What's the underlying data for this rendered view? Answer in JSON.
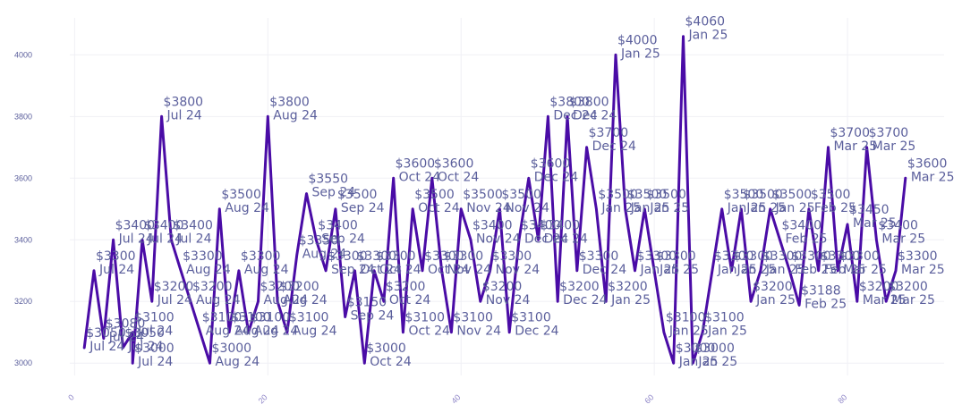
{
  "colors": {
    "line": "#4a0ca6",
    "label": "#5b5f9c",
    "grid": "#f0f0f5",
    "xtick": "#8f86c8",
    "ytick": "#5b5f9c"
  },
  "chart_data": {
    "type": "line",
    "title": "",
    "xlabel": "",
    "ylabel": "",
    "xlim": [
      -0.5,
      90
    ],
    "ylim": [
      2960,
      4120
    ],
    "x_ticks": [
      0,
      20,
      40,
      60,
      80
    ],
    "y_ticks": [
      3000,
      3200,
      3400,
      3600,
      3800,
      4000
    ],
    "grid": true,
    "legend": "none",
    "series": [
      {
        "points": [
          {
            "x": 1,
            "y": 3050,
            "price": "$3050",
            "month": "Jul 24"
          },
          {
            "x": 2,
            "y": 3300,
            "price": "$3300",
            "month": "Jul 24"
          },
          {
            "x": 3,
            "y": 3080,
            "price": "$3080",
            "month": "Jul 24"
          },
          {
            "x": 4,
            "y": 3400,
            "price": "$3400",
            "month": "Jul 24"
          },
          {
            "x": 5,
            "y": 3050,
            "price": "$3050",
            "month": "Jul 24"
          },
          {
            "x": 6,
            "y": 3100,
            "price": "$3100",
            "month": "Jul 24"
          },
          {
            "x": 6,
            "y": 3000,
            "price": "$3000",
            "month": "Jul 24"
          },
          {
            "x": 7,
            "y": 3400,
            "price": "$3400",
            "month": "Jul 24"
          },
          {
            "x": 8,
            "y": 3200,
            "price": "$3200",
            "month": "Jul 24"
          },
          {
            "x": 9,
            "y": 3800,
            "price": "$3800",
            "month": "Jul 24"
          },
          {
            "x": 10,
            "y": 3400,
            "price": "$3400",
            "month": "Jul 24"
          },
          {
            "x": 11,
            "y": 3300,
            "price": "$3300",
            "month": "Aug 24"
          },
          {
            "x": 12,
            "y": 3200,
            "price": "$3200",
            "month": "Aug 24"
          },
          {
            "x": 13,
            "y": 3100,
            "price": "$3100",
            "month": "Aug 24"
          },
          {
            "x": 14,
            "y": 3000,
            "price": "$3000",
            "month": "Aug 24"
          },
          {
            "x": 15,
            "y": 3500,
            "price": "$3500",
            "month": "Aug 24"
          },
          {
            "x": 16,
            "y": 3100,
            "price": "$3100",
            "month": "Aug 24"
          },
          {
            "x": 17,
            "y": 3300,
            "price": "$3300",
            "month": "Aug 24"
          },
          {
            "x": 18,
            "y": 3100,
            "price": "$3100",
            "month": "Aug 24"
          },
          {
            "x": 19,
            "y": 3200,
            "price": "$3200",
            "month": "Aug 24"
          },
          {
            "x": 20,
            "y": 3800,
            "price": "$3800",
            "month": "Aug 24"
          },
          {
            "x": 21,
            "y": 3200,
            "price": "$3200",
            "month": "Aug 24"
          },
          {
            "x": 22,
            "y": 3100,
            "price": "$3100",
            "month": "Aug 24"
          },
          {
            "x": 23,
            "y": 3350,
            "price": "$3350",
            "month": "Aug 24"
          },
          {
            "x": 24,
            "y": 3550,
            "price": "$3550",
            "month": "Sep 24"
          },
          {
            "x": 25,
            "y": 3400,
            "price": "$3400",
            "month": "Sep 24"
          },
          {
            "x": 26,
            "y": 3300,
            "price": "$3300",
            "month": "Sep 24"
          },
          {
            "x": 27,
            "y": 3500,
            "price": "$3500",
            "month": "Sep 24"
          },
          {
            "x": 28,
            "y": 3150,
            "price": "$3150",
            "month": "Sep 24"
          },
          {
            "x": 29,
            "y": 3300,
            "price": "$3300",
            "month": "Oct 24"
          },
          {
            "x": 30,
            "y": 3000,
            "price": "$3000",
            "month": "Oct 24"
          },
          {
            "x": 31,
            "y": 3300,
            "price": "$3300",
            "month": "Oct 24"
          },
          {
            "x": 32,
            "y": 3200,
            "price": "$3200",
            "month": "Oct 24"
          },
          {
            "x": 33,
            "y": 3600,
            "price": "$3600",
            "month": "Oct 24"
          },
          {
            "x": 34,
            "y": 3100,
            "price": "$3100",
            "month": "Oct 24"
          },
          {
            "x": 35,
            "y": 3500,
            "price": "$3500",
            "month": "Oct 24"
          },
          {
            "x": 36,
            "y": 3300,
            "price": "$3300",
            "month": "Oct 24"
          },
          {
            "x": 37,
            "y": 3600,
            "price": "$3600",
            "month": "Oct 24"
          },
          {
            "x": 38,
            "y": 3300,
            "price": "$3300",
            "month": "Nov 24"
          },
          {
            "x": 39,
            "y": 3100,
            "price": "$3100",
            "month": "Nov 24"
          },
          {
            "x": 40,
            "y": 3500,
            "price": "$3500",
            "month": "Nov 24"
          },
          {
            "x": 41,
            "y": 3400,
            "price": "$3400",
            "month": "Nov 24"
          },
          {
            "x": 42,
            "y": 3200,
            "price": "$3200",
            "month": "Nov 24"
          },
          {
            "x": 43,
            "y": 3300,
            "price": "$3300",
            "month": "Nov 24"
          },
          {
            "x": 44,
            "y": 3500,
            "price": "$3500",
            "month": "Nov 24"
          },
          {
            "x": 45,
            "y": 3100,
            "price": "$3100",
            "month": "Dec 24"
          },
          {
            "x": 46,
            "y": 3400,
            "price": "$3400",
            "month": "Dec 24"
          },
          {
            "x": 47,
            "y": 3600,
            "price": "$3600",
            "month": "Dec 24"
          },
          {
            "x": 48,
            "y": 3400,
            "price": "$3400",
            "month": "Dec 24"
          },
          {
            "x": 49,
            "y": 3800,
            "price": "$3800",
            "month": "Dec 24"
          },
          {
            "x": 50,
            "y": 3200,
            "price": "$3200",
            "month": "Dec 24"
          },
          {
            "x": 51,
            "y": 3800,
            "price": "$3800",
            "month": "Dec 24"
          },
          {
            "x": 52,
            "y": 3300,
            "price": "$3300",
            "month": "Dec 24"
          },
          {
            "x": 53,
            "y": 3700,
            "price": "$3700",
            "month": "Dec 24"
          },
          {
            "x": 54,
            "y": 3500,
            "price": "$3500",
            "month": "Jan 25"
          },
          {
            "x": 55,
            "y": 3200,
            "price": "$3200",
            "month": "Jan 25"
          },
          {
            "x": 56,
            "y": 4000,
            "price": "$4000",
            "month": "Jan 25"
          },
          {
            "x": 57,
            "y": 3500,
            "price": "$3500",
            "month": "Jan 25"
          },
          {
            "x": 58,
            "y": 3300,
            "price": "$3300",
            "month": "Jan 25"
          },
          {
            "x": 59,
            "y": 3500,
            "price": "$3500",
            "month": "Jan 25"
          },
          {
            "x": 60,
            "y": 3300,
            "price": "$3300",
            "month": "Jan 25"
          },
          {
            "x": 61,
            "y": 3100,
            "price": "$3100",
            "month": "Jan 25"
          },
          {
            "x": 62,
            "y": 3000,
            "price": "$3000",
            "month": "Jan 25"
          },
          {
            "x": 63,
            "y": 4060,
            "price": "$4060",
            "month": "Jan 25"
          },
          {
            "x": 64,
            "y": 3000,
            "price": "$3000",
            "month": "Jan 25"
          },
          {
            "x": 65,
            "y": 3100,
            "price": "$3100",
            "month": "Jan 25"
          },
          {
            "x": 66,
            "y": 3300,
            "price": "$3300",
            "month": "Jan 25"
          },
          {
            "x": 67,
            "y": 3500,
            "price": "$3500",
            "month": "Jan 25"
          },
          {
            "x": 68,
            "y": 3300,
            "price": "$3300",
            "month": "Jan 25"
          },
          {
            "x": 69,
            "y": 3500,
            "price": "$3500",
            "month": "Jan 25"
          },
          {
            "x": 70,
            "y": 3200,
            "price": "$3200",
            "month": "Jan 25"
          },
          {
            "x": 71,
            "y": 3300,
            "price": "$3300",
            "month": "Jan 25"
          },
          {
            "x": 72,
            "y": 3500,
            "price": "$3500",
            "month": "Jan 25"
          },
          {
            "x": 73,
            "y": 3400,
            "price": "$3400",
            "month": "Feb 25"
          },
          {
            "x": 74,
            "y": 3300,
            "price": "$3300",
            "month": "Feb 25"
          },
          {
            "x": 75,
            "y": 3188,
            "price": "$3188",
            "month": "Feb 25"
          },
          {
            "x": 76,
            "y": 3500,
            "price": "$3500",
            "month": "Feb 25"
          },
          {
            "x": 77,
            "y": 3300,
            "price": "$3300",
            "month": "Feb 25"
          },
          {
            "x": 78,
            "y": 3700,
            "price": "$3700",
            "month": "Mar 25"
          },
          {
            "x": 79,
            "y": 3300,
            "price": "$3300",
            "month": "Mar 25"
          },
          {
            "x": 80,
            "y": 3450,
            "price": "$3450",
            "month": "Mar 25"
          },
          {
            "x": 81,
            "y": 3200,
            "price": "$3200",
            "month": "Mar 25"
          },
          {
            "x": 82,
            "y": 3700,
            "price": "$3700",
            "month": "Mar 25"
          },
          {
            "x": 83,
            "y": 3400,
            "price": "$3400",
            "month": "Mar 25"
          },
          {
            "x": 84,
            "y": 3200,
            "price": "$3200",
            "month": "Mar 25"
          },
          {
            "x": 85,
            "y": 3300,
            "price": "$3300",
            "month": "Mar 25"
          },
          {
            "x": 86,
            "y": 3600,
            "price": "$3600",
            "month": "Mar 25"
          }
        ]
      }
    ]
  }
}
